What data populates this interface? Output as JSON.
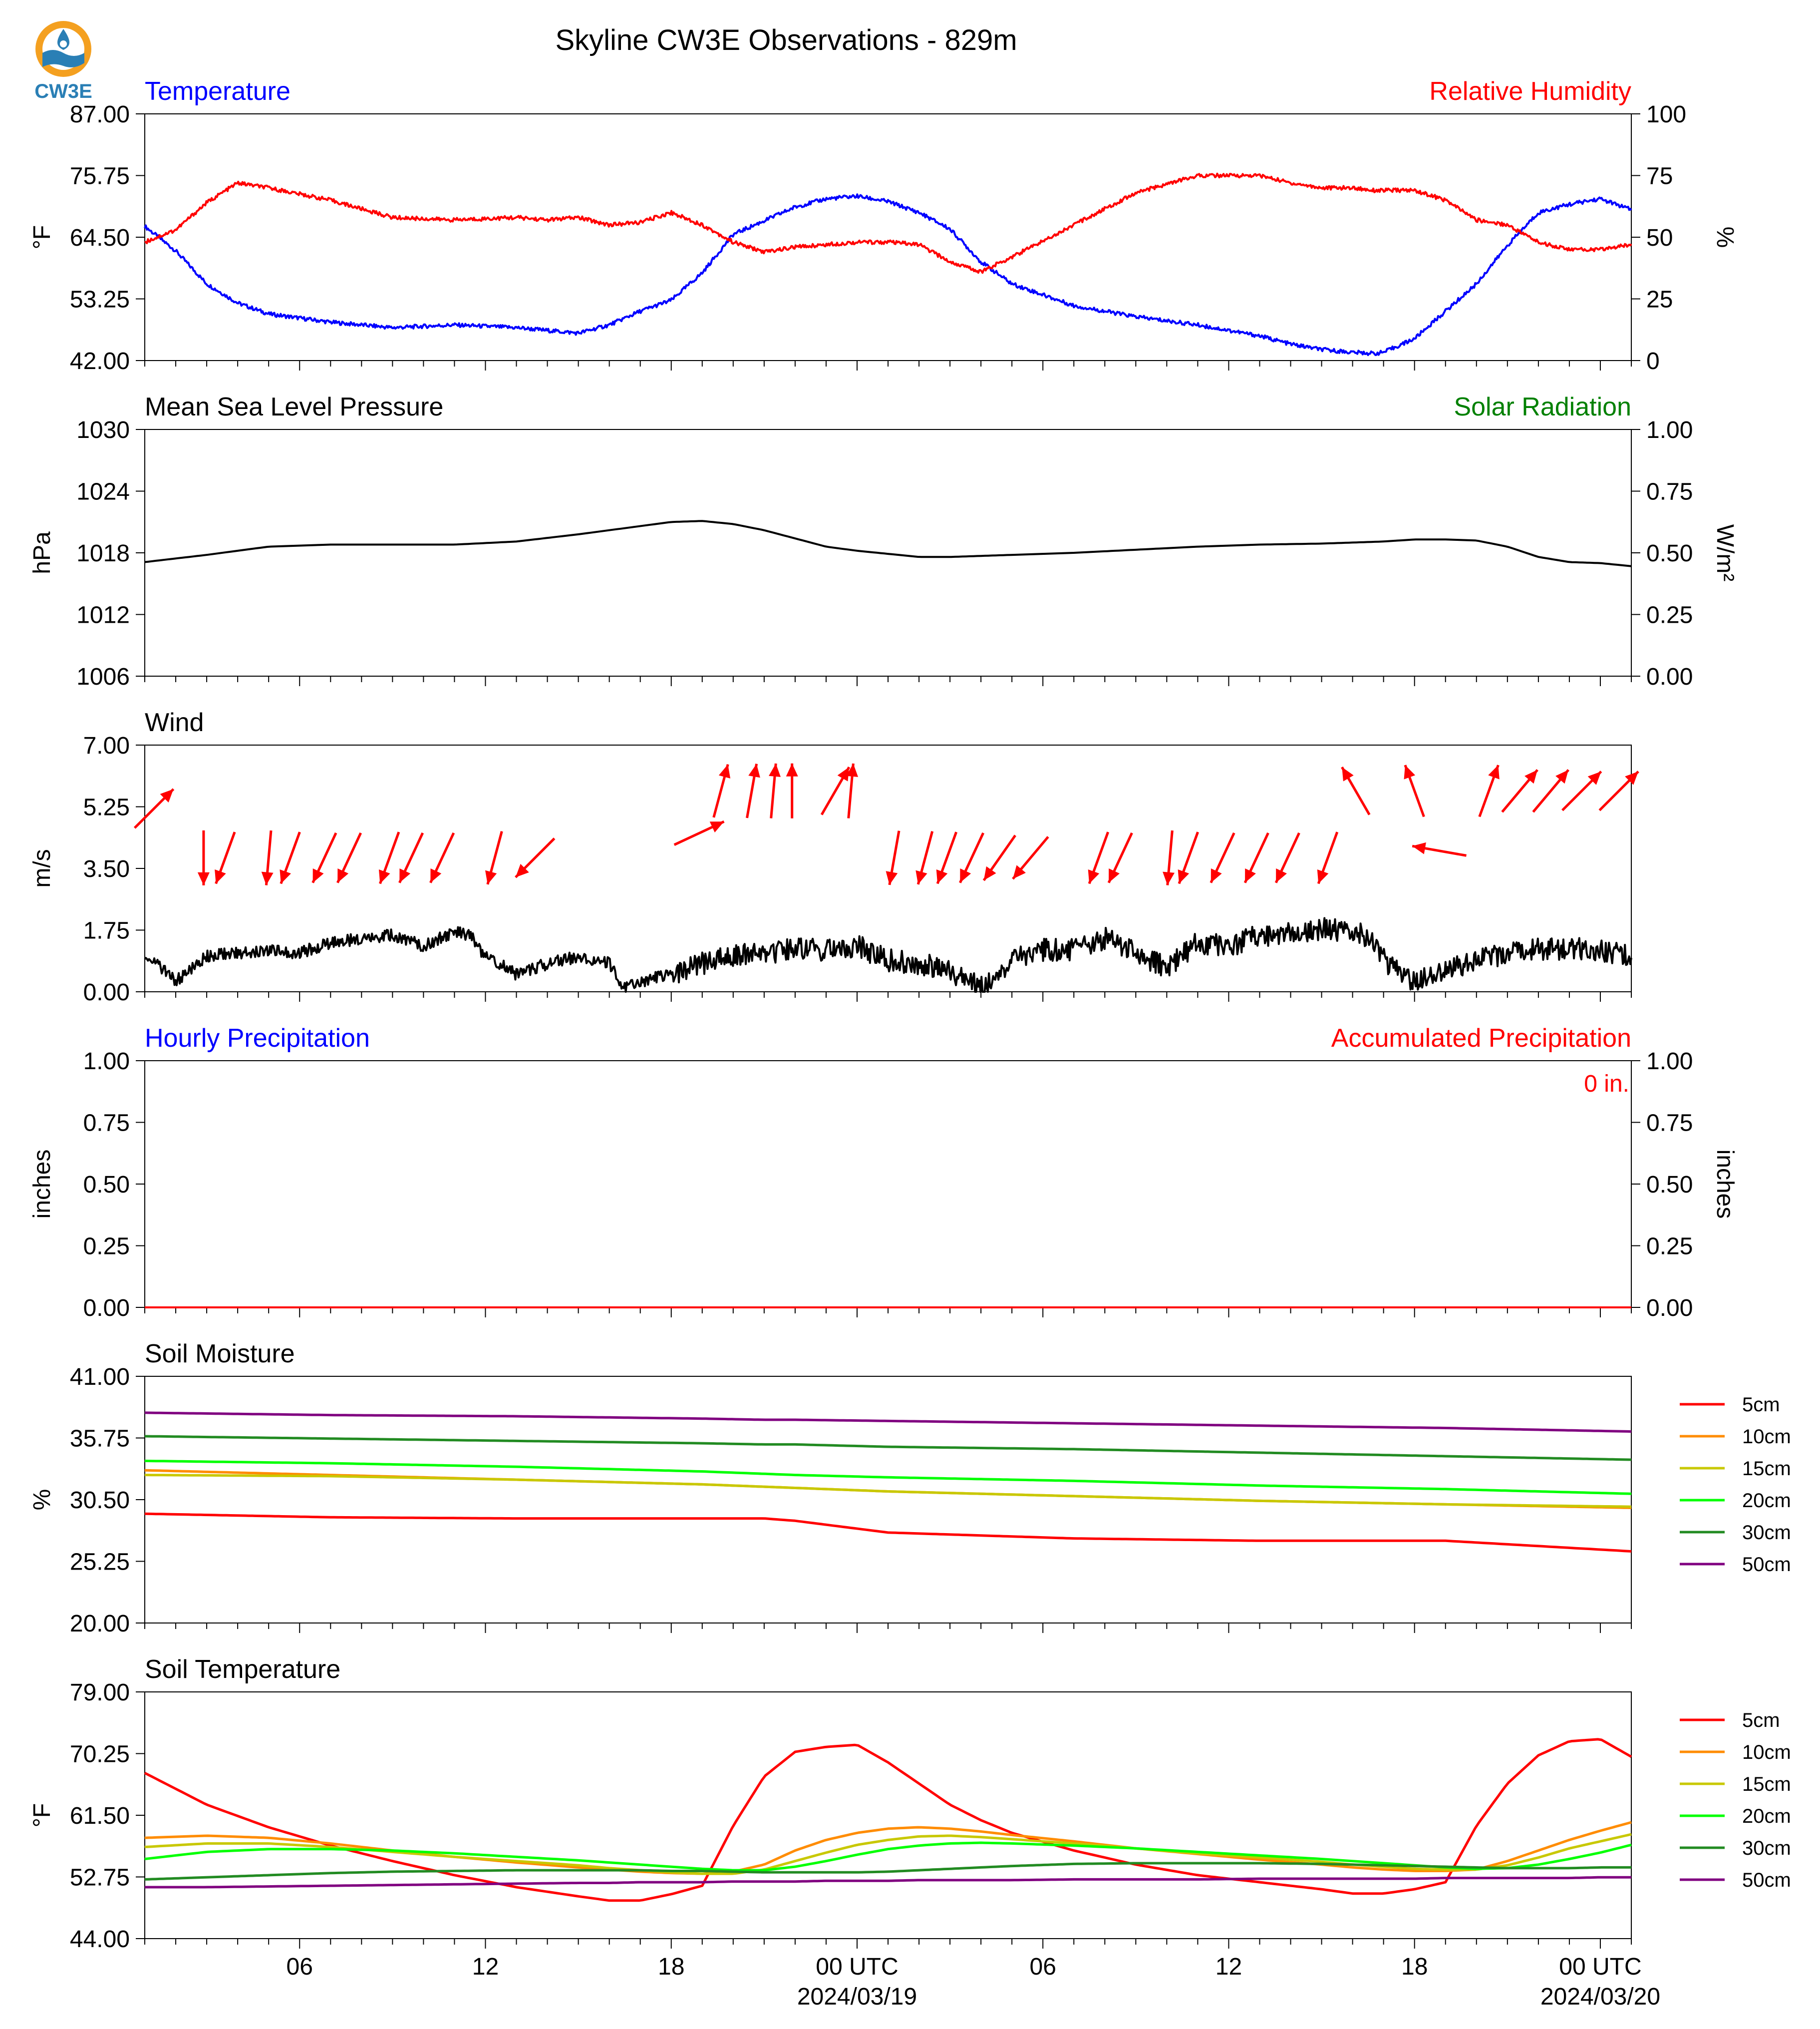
{
  "title": "Skyline CW3E Observations - 829m",
  "logo": {
    "text": "CW3E",
    "icon": "cw3e-logo-icon",
    "colors": {
      "ring": "#f4a020",
      "water": "#2a7fb5",
      "text": "#2a7fb5"
    }
  },
  "colors": {
    "blue": "#0000ff",
    "red": "#ff0000",
    "green": "#008000",
    "black": "#000000"
  },
  "time_axis": {
    "tick_labels": [
      "06",
      "12",
      "18",
      "00 UTC",
      "06",
      "12",
      "18",
      "00 UTC"
    ],
    "date_labels": [
      "2024/03/19",
      "2024/03/20"
    ]
  },
  "chart_data": [
    {
      "type": "line",
      "title_left": "Temperature",
      "title_right": "Relative Humidity",
      "ylabel": "°F",
      "ylabel_right": "%",
      "ylim": [
        42,
        87
      ],
      "ylim_right": [
        0,
        100
      ],
      "yticks": [
        "87.00",
        "75.75",
        "64.50",
        "53.25",
        "42.00"
      ],
      "yticks_right": [
        "100",
        "75",
        "50",
        "25",
        "0"
      ],
      "x_hours": [
        0,
        1,
        2,
        3,
        4,
        6,
        8,
        10,
        12,
        13,
        14,
        15,
        16,
        17,
        18,
        19,
        20,
        21,
        22,
        23,
        24,
        25,
        26,
        27,
        28,
        30,
        32,
        34,
        36,
        37,
        38,
        39,
        39.7,
        40,
        41,
        42,
        43,
        44,
        45,
        46,
        47,
        48
      ],
      "series": [
        {
          "name": "Temperature",
          "axis": "left",
          "color": "#0000ff",
          "values": [
            66.5,
            62,
            56,
            52.5,
            50.5,
            49,
            48,
            48.5,
            48,
            47.5,
            47,
            48.5,
            51,
            53,
            58,
            65,
            67.5,
            70,
            71.5,
            72,
            71,
            69,
            66,
            60,
            56,
            52,
            50,
            48.5,
            46.5,
            45,
            44,
            43.5,
            43.3,
            43.5,
            46,
            51,
            56,
            63,
            69,
            70.5,
            71.5,
            69.5
          ]
        },
        {
          "name": "Relative Humidity",
          "axis": "right",
          "color": "#ff0000",
          "values": [
            48,
            53,
            64,
            72,
            70,
            65,
            58,
            57,
            58,
            57,
            58,
            55,
            56,
            60,
            55,
            48,
            44,
            46,
            47,
            48,
            48,
            47,
            40,
            36,
            42,
            55,
            68,
            75,
            75,
            72,
            70,
            70,
            69,
            69,
            69,
            65,
            57,
            55,
            48,
            45,
            45,
            47
          ]
        }
      ]
    },
    {
      "type": "line",
      "title_left": "Mean Sea Level Pressure",
      "title_right": "Solar Radiation",
      "ylabel": "hPa",
      "ylabel_right": "W/m²",
      "ylim": [
        1006,
        1030
      ],
      "ylim_right": [
        0,
        1
      ],
      "yticks": [
        "1030",
        "1024",
        "1018",
        "1012",
        "1006"
      ],
      "yticks_right": [
        "1.00",
        "0.75",
        "0.50",
        "0.25",
        "0.00"
      ],
      "x_hours": [
        0,
        2,
        4,
        6,
        8,
        10,
        12,
        14,
        15,
        16,
        17,
        18,
        19,
        20,
        21,
        22,
        23,
        24,
        25,
        26,
        27,
        28,
        30,
        32,
        34,
        36,
        38,
        40,
        41,
        42,
        43,
        44,
        45,
        46,
        47,
        48
      ],
      "series": [
        {
          "name": "Mean Sea Level Pressure",
          "axis": "left",
          "color": "#000000",
          "values": [
            1017.1,
            1017.8,
            1018.6,
            1018.8,
            1018.8,
            1018.8,
            1019.1,
            1019.8,
            1020.2,
            1020.6,
            1021.0,
            1021.1,
            1020.8,
            1020.2,
            1019.4,
            1018.6,
            1018.2,
            1017.9,
            1017.6,
            1017.6,
            1017.7,
            1017.8,
            1018.0,
            1018.3,
            1018.6,
            1018.8,
            1018.9,
            1019.1,
            1019.3,
            1019.3,
            1019.2,
            1018.6,
            1017.6,
            1017.1,
            1017.0,
            1016.7
          ]
        }
      ]
    },
    {
      "type": "line",
      "title_left": "Wind",
      "ylabel": "m/s",
      "ylim": [
        0,
        7
      ],
      "yticks": [
        "7.00",
        "5.25",
        "3.50",
        "1.75",
        "0.00"
      ],
      "x_hours": [
        0,
        0.5,
        1,
        2,
        3,
        4,
        5,
        6,
        7,
        8,
        9,
        10,
        10.5,
        11,
        11.5,
        12,
        13,
        14,
        15,
        15.5,
        16,
        17,
        18,
        19,
        20,
        21,
        22,
        23,
        24,
        25,
        26,
        27,
        28,
        29,
        30,
        31,
        32,
        33,
        34,
        35,
        36,
        37,
        37.5,
        38,
        39,
        39.5,
        40,
        41,
        42,
        43,
        44,
        45,
        46,
        47,
        48
      ],
      "series": [
        {
          "name": "Wind",
          "axis": "left",
          "color": "#000000",
          "values": [
            1.1,
            0.7,
            0.3,
            1.0,
            1.1,
            1.2,
            1.1,
            1.4,
            1.5,
            1.6,
            1.3,
            1.7,
            1.6,
            1.0,
            0.8,
            0.5,
            0.8,
            1.0,
            0.8,
            0.1,
            0.3,
            0.5,
            0.8,
            1.0,
            1.1,
            1.2,
            1.2,
            1.3,
            0.9,
            0.8,
            0.6,
            0.1,
            0.9,
            1.2,
            1.2,
            1.5,
            1.1,
            0.7,
            1.4,
            1.3,
            1.6,
            1.7,
            1.7,
            1.8,
            1.7,
            1.6,
            0.9,
            0.3,
            0.6,
            0.9,
            1.1,
            1.2,
            1.2,
            1.2,
            1.0
          ]
        }
      ],
      "barb_arrows": {
        "color": "#ff0000",
        "items": [
          {
            "x": 0.3,
            "y": 5.2,
            "dir_deg": 45
          },
          {
            "x": 1.9,
            "y": 3.8,
            "dir_deg": 180
          },
          {
            "x": 2.6,
            "y": 3.8,
            "dir_deg": 200
          },
          {
            "x": 4.0,
            "y": 3.8,
            "dir_deg": 185
          },
          {
            "x": 4.7,
            "y": 3.8,
            "dir_deg": 200
          },
          {
            "x": 5.8,
            "y": 3.8,
            "dir_deg": 205
          },
          {
            "x": 6.6,
            "y": 3.8,
            "dir_deg": 205
          },
          {
            "x": 7.9,
            "y": 3.8,
            "dir_deg": 200
          },
          {
            "x": 8.6,
            "y": 3.8,
            "dir_deg": 205
          },
          {
            "x": 9.6,
            "y": 3.8,
            "dir_deg": 205
          },
          {
            "x": 11.3,
            "y": 3.8,
            "dir_deg": 195
          },
          {
            "x": 12.6,
            "y": 3.8,
            "dir_deg": 225
          },
          {
            "x": 17.9,
            "y": 4.5,
            "dir_deg": 65
          },
          {
            "x": 18.6,
            "y": 5.7,
            "dir_deg": 15
          },
          {
            "x": 19.6,
            "y": 5.7,
            "dir_deg": 10
          },
          {
            "x": 20.3,
            "y": 5.7,
            "dir_deg": 5
          },
          {
            "x": 20.9,
            "y": 5.7,
            "dir_deg": 0
          },
          {
            "x": 22.3,
            "y": 5.7,
            "dir_deg": 30
          },
          {
            "x": 22.8,
            "y": 5.7,
            "dir_deg": 5
          },
          {
            "x": 24.2,
            "y": 3.8,
            "dir_deg": 190
          },
          {
            "x": 25.2,
            "y": 3.8,
            "dir_deg": 195
          },
          {
            "x": 25.9,
            "y": 3.8,
            "dir_deg": 200
          },
          {
            "x": 26.7,
            "y": 3.8,
            "dir_deg": 205
          },
          {
            "x": 27.6,
            "y": 3.8,
            "dir_deg": 215
          },
          {
            "x": 28.6,
            "y": 3.8,
            "dir_deg": 220
          },
          {
            "x": 30.8,
            "y": 3.8,
            "dir_deg": 200
          },
          {
            "x": 31.5,
            "y": 3.8,
            "dir_deg": 205
          },
          {
            "x": 33.1,
            "y": 3.8,
            "dir_deg": 185
          },
          {
            "x": 33.7,
            "y": 3.8,
            "dir_deg": 200
          },
          {
            "x": 34.8,
            "y": 3.8,
            "dir_deg": 205
          },
          {
            "x": 35.9,
            "y": 3.8,
            "dir_deg": 205
          },
          {
            "x": 36.9,
            "y": 3.8,
            "dir_deg": 205
          },
          {
            "x": 38.2,
            "y": 3.8,
            "dir_deg": 200
          },
          {
            "x": 39.1,
            "y": 5.7,
            "dir_deg": 330
          },
          {
            "x": 41.0,
            "y": 5.7,
            "dir_deg": 340
          },
          {
            "x": 41.8,
            "y": 4.0,
            "dir_deg": 280
          },
          {
            "x": 43.4,
            "y": 5.7,
            "dir_deg": 20
          },
          {
            "x": 44.4,
            "y": 5.7,
            "dir_deg": 40
          },
          {
            "x": 45.4,
            "y": 5.7,
            "dir_deg": 40
          },
          {
            "x": 46.4,
            "y": 5.7,
            "dir_deg": 45
          },
          {
            "x": 47.6,
            "y": 5.7,
            "dir_deg": 45
          }
        ]
      }
    },
    {
      "type": "line",
      "title_left": "Hourly Precipitation",
      "title_right": "Accumulated Precipitation",
      "ylabel": "inches",
      "ylabel_right": "inches",
      "ylim": [
        0,
        1
      ],
      "ylim_right": [
        0,
        1
      ],
      "yticks": [
        "1.00",
        "0.75",
        "0.50",
        "0.25",
        "0.00"
      ],
      "yticks_right": [
        "1.00",
        "0.75",
        "0.50",
        "0.25",
        "0.00"
      ],
      "annotation": "0 in.",
      "x_hours": [
        0,
        48
      ],
      "series": [
        {
          "name": "Hourly Precipitation",
          "axis": "left",
          "color": "#0000ff",
          "values": [
            0,
            0
          ]
        },
        {
          "name": "Accumulated Precipitation",
          "axis": "right",
          "color": "#ff0000",
          "values": [
            0,
            0
          ]
        }
      ]
    },
    {
      "type": "line",
      "title_left": "Soil Moisture",
      "ylabel": "%",
      "ylim": [
        20,
        41
      ],
      "yticks": [
        "41.00",
        "35.75",
        "30.50",
        "25.25",
        "20.00"
      ],
      "legend_position": "right",
      "x_hours": [
        0,
        6,
        12,
        18,
        20,
        21,
        24,
        30,
        36,
        42,
        48
      ],
      "series": [
        {
          "name": "5cm",
          "color": "#ff0000",
          "values": [
            29.3,
            29.0,
            28.9,
            28.9,
            28.9,
            28.7,
            27.7,
            27.2,
            27.0,
            27.0,
            26.1
          ]
        },
        {
          "name": "10cm",
          "color": "#ff8c00",
          "values": [
            33.0,
            32.6,
            32.2,
            31.8,
            31.6,
            31.5,
            31.2,
            30.8,
            30.4,
            30.1,
            29.8
          ]
        },
        {
          "name": "15cm",
          "color": "#c8c800",
          "values": [
            32.6,
            32.5,
            32.2,
            31.8,
            31.6,
            31.5,
            31.2,
            30.8,
            30.4,
            30.1,
            29.9
          ]
        },
        {
          "name": "20cm",
          "color": "#00ff00",
          "values": [
            33.8,
            33.6,
            33.3,
            32.9,
            32.7,
            32.6,
            32.4,
            32.1,
            31.7,
            31.4,
            31.0
          ]
        },
        {
          "name": "30cm",
          "color": "#228b22",
          "values": [
            35.9,
            35.7,
            35.5,
            35.3,
            35.2,
            35.2,
            35.0,
            34.8,
            34.5,
            34.2,
            33.9
          ]
        },
        {
          "name": "50cm",
          "color": "#800080",
          "values": [
            37.9,
            37.7,
            37.6,
            37.4,
            37.3,
            37.3,
            37.2,
            37.0,
            36.8,
            36.6,
            36.3
          ]
        }
      ]
    },
    {
      "type": "line",
      "title_left": "Soil Temperature",
      "ylabel": "°F",
      "ylim": [
        44,
        79
      ],
      "yticks": [
        "79.00",
        "70.25",
        "61.50",
        "52.75",
        "44.00"
      ],
      "legend_position": "right",
      "x_hours": [
        0,
        2,
        4,
        6,
        8,
        10,
        12,
        14,
        15,
        16,
        17,
        18,
        19,
        20,
        21,
        22,
        23,
        24,
        25,
        26,
        27,
        28,
        30,
        32,
        34,
        36,
        38,
        39,
        40,
        41,
        42,
        43,
        44,
        45,
        46,
        47,
        48
      ],
      "series": [
        {
          "name": "5cm",
          "color": "#ff0000",
          "values": [
            67.5,
            63.0,
            59.8,
            57.2,
            55.0,
            53.0,
            51.3,
            50.0,
            49.4,
            49.4,
            50.3,
            51.5,
            60.0,
            67.0,
            70.5,
            71.2,
            71.5,
            69.0,
            66.0,
            63.0,
            60.8,
            59.0,
            56.5,
            54.5,
            53.0,
            52.0,
            51.0,
            50.4,
            50.4,
            51.0,
            52.0,
            60.0,
            66.0,
            70.0,
            72.0,
            72.3,
            69.8
          ]
        },
        {
          "name": "10cm",
          "color": "#ff8c00",
          "values": [
            58.3,
            58.6,
            58.3,
            57.5,
            56.5,
            55.6,
            54.8,
            54.1,
            53.8,
            53.5,
            53.3,
            53.2,
            53.5,
            54.5,
            56.5,
            58.0,
            59.0,
            59.6,
            59.8,
            59.6,
            59.2,
            58.7,
            57.8,
            56.8,
            56.0,
            55.2,
            54.5,
            54.1,
            53.8,
            53.6,
            53.6,
            53.8,
            55.0,
            56.5,
            58.0,
            59.3,
            60.5
          ]
        },
        {
          "name": "15cm",
          "color": "#c8c800",
          "values": [
            57.0,
            57.5,
            57.5,
            57.0,
            56.3,
            55.6,
            55.0,
            54.4,
            54.0,
            53.7,
            53.4,
            53.2,
            53.2,
            53.8,
            55.0,
            56.2,
            57.3,
            58.0,
            58.5,
            58.6,
            58.4,
            58.1,
            57.5,
            56.8,
            56.1,
            55.5,
            54.9,
            54.5,
            54.2,
            53.9,
            53.8,
            53.8,
            54.4,
            55.5,
            56.8,
            57.8,
            58.8
          ]
        },
        {
          "name": "20cm",
          "color": "#00ff00",
          "values": [
            55.3,
            56.3,
            56.7,
            56.7,
            56.5,
            56.1,
            55.6,
            55.1,
            54.8,
            54.5,
            54.2,
            53.9,
            53.7,
            53.7,
            54.2,
            55.0,
            55.9,
            56.7,
            57.2,
            57.5,
            57.6,
            57.5,
            57.2,
            56.8,
            56.3,
            55.8,
            55.3,
            55.0,
            54.7,
            54.4,
            54.1,
            53.9,
            54.0,
            54.5,
            55.3,
            56.2,
            57.3
          ]
        },
        {
          "name": "30cm",
          "color": "#228b22",
          "values": [
            52.4,
            52.7,
            53.0,
            53.3,
            53.5,
            53.6,
            53.7,
            53.7,
            53.7,
            53.7,
            53.6,
            53.6,
            53.5,
            53.4,
            53.4,
            53.4,
            53.4,
            53.5,
            53.7,
            53.9,
            54.1,
            54.3,
            54.6,
            54.7,
            54.7,
            54.7,
            54.6,
            54.5,
            54.4,
            54.3,
            54.2,
            54.1,
            54.0,
            54.0,
            54.0,
            54.1,
            54.1
          ]
        },
        {
          "name": "50cm",
          "color": "#800080",
          "values": [
            51.3,
            51.3,
            51.4,
            51.5,
            51.6,
            51.7,
            51.8,
            51.9,
            51.9,
            52.0,
            52.0,
            52.0,
            52.1,
            52.1,
            52.1,
            52.2,
            52.2,
            52.2,
            52.3,
            52.3,
            52.3,
            52.3,
            52.4,
            52.4,
            52.4,
            52.5,
            52.5,
            52.5,
            52.5,
            52.5,
            52.6,
            52.6,
            52.6,
            52.6,
            52.6,
            52.7,
            52.7
          ]
        }
      ]
    }
  ]
}
